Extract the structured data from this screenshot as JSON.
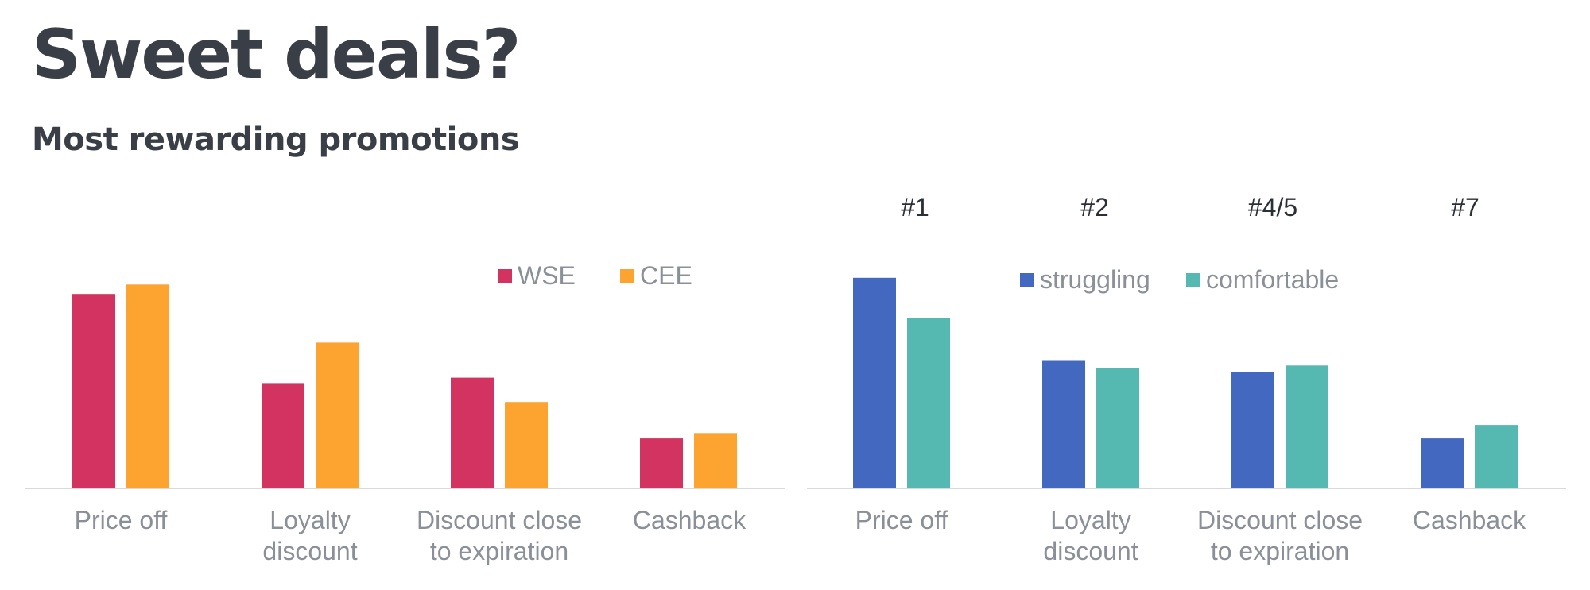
{
  "title": "Sweet deals?",
  "subtitle": "Most rewarding promotions",
  "chart_data": [
    {
      "type": "bar",
      "categories": [
        "Price off",
        "Loyalty discount",
        "Discount close to expiration",
        "Cashback"
      ],
      "category_lines": [
        [
          "Price off"
        ],
        [
          "Loyalty",
          "discount"
        ],
        [
          "Discount close",
          "to expiration"
        ],
        [
          "Cashback"
        ]
      ],
      "series": [
        {
          "name": "WSE",
          "color": "#d23360",
          "values": [
            72,
            39,
            41,
            18.5
          ]
        },
        {
          "name": "CEE",
          "color": "#fda430",
          "values": [
            75.5,
            54,
            32,
            20.5
          ]
        }
      ],
      "legend_position": "top-right",
      "grid": false,
      "ylim": [
        0,
        100
      ]
    },
    {
      "type": "bar",
      "categories": [
        "Price off",
        "Loyalty discount",
        "Discount close to expiration",
        "Cashback"
      ],
      "category_lines": [
        [
          "Price off"
        ],
        [
          "Loyalty",
          "discount"
        ],
        [
          "Discount close",
          "to expiration"
        ],
        [
          "Cashback"
        ]
      ],
      "ranks": [
        "#1",
        "#2",
        "#4/5",
        "#7"
      ],
      "series": [
        {
          "name": "struggling",
          "color": "#4368c0",
          "values": [
            78,
            47.5,
            43,
            18.5
          ]
        },
        {
          "name": "comfortable",
          "color": "#55b9b1",
          "values": [
            63,
            44.5,
            45.5,
            23.5
          ]
        }
      ],
      "legend_position": "top-right",
      "grid": false,
      "ylim": [
        0,
        100
      ]
    }
  ]
}
